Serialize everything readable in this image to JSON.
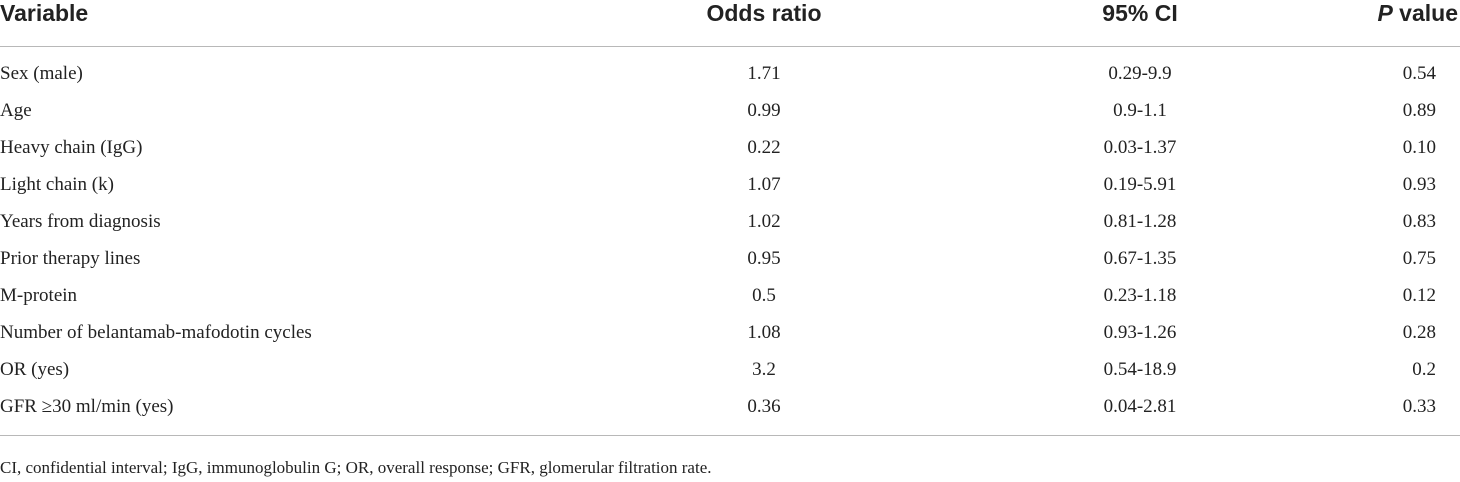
{
  "table": {
    "headers": {
      "variable": "Variable",
      "odds_ratio": "Odds ratio",
      "ci": "95% CI",
      "p_italic": "P",
      "p_rest": " value"
    },
    "rows": [
      {
        "variable": "Sex (male)",
        "odds_ratio": "1.71",
        "ci": "0.29-9.9",
        "p": "0.54"
      },
      {
        "variable": "Age",
        "odds_ratio": "0.99",
        "ci": "0.9-1.1",
        "p": "0.89"
      },
      {
        "variable": "Heavy chain (IgG)",
        "odds_ratio": "0.22",
        "ci": "0.03-1.37",
        "p": "0.10"
      },
      {
        "variable": "Light chain (k)",
        "odds_ratio": "1.07",
        "ci": "0.19-5.91",
        "p": "0.93"
      },
      {
        "variable": "Years from diagnosis",
        "odds_ratio": "1.02",
        "ci": "0.81-1.28",
        "p": "0.83"
      },
      {
        "variable": "Prior therapy lines",
        "odds_ratio": "0.95",
        "ci": "0.67-1.35",
        "p": "0.75"
      },
      {
        "variable": "M-protein",
        "odds_ratio": "0.5",
        "ci": "0.23-1.18",
        "p": "0.12"
      },
      {
        "variable": "Number of belantamab-mafodotin cycles",
        "odds_ratio": "1.08",
        "ci": "0.93-1.26",
        "p": "0.28"
      },
      {
        "variable": "OR (yes)",
        "odds_ratio": "3.2",
        "ci": "0.54-18.9",
        "p": "0.2"
      },
      {
        "variable": "GFR ≥30 ml/min (yes)",
        "odds_ratio": "0.36",
        "ci": "0.04-2.81",
        "p": "0.33"
      }
    ]
  },
  "footnote": "CI, confidential interval; IgG, immunoglobulin G; OR, overall response; GFR, glomerular filtration rate."
}
